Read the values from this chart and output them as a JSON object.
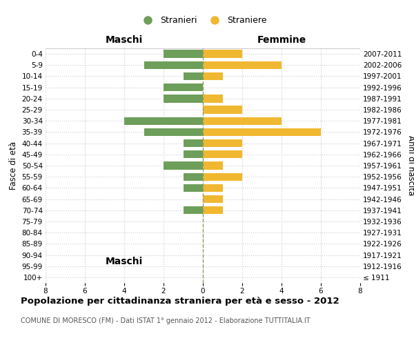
{
  "age_groups": [
    "100+",
    "95-99",
    "90-94",
    "85-89",
    "80-84",
    "75-79",
    "70-74",
    "65-69",
    "60-64",
    "55-59",
    "50-54",
    "45-49",
    "40-44",
    "35-39",
    "30-34",
    "25-29",
    "20-24",
    "15-19",
    "10-14",
    "5-9",
    "0-4"
  ],
  "birth_years": [
    "≤ 1911",
    "1912-1916",
    "1917-1921",
    "1922-1926",
    "1927-1931",
    "1932-1936",
    "1937-1941",
    "1942-1946",
    "1947-1951",
    "1952-1956",
    "1957-1961",
    "1962-1966",
    "1967-1971",
    "1972-1976",
    "1977-1981",
    "1982-1986",
    "1987-1991",
    "1992-1996",
    "1997-2001",
    "2002-2006",
    "2007-2011"
  ],
  "maschi": [
    0,
    0,
    0,
    0,
    0,
    0,
    1,
    0,
    1,
    1,
    2,
    1,
    1,
    3,
    4,
    0,
    2,
    2,
    1,
    3,
    2
  ],
  "femmine": [
    0,
    0,
    0,
    0,
    0,
    0,
    1,
    1,
    1,
    2,
    1,
    2,
    2,
    6,
    4,
    2,
    1,
    0,
    1,
    4,
    2
  ],
  "maschi_color": "#6d9e5a",
  "femmine_color": "#f0b830",
  "title": "Popolazione per cittadinanza straniera per età e sesso - 2012",
  "subtitle": "COMUNE DI MORESCO (FM) - Dati ISTAT 1° gennaio 2012 - Elaborazione TUTTITALIA.IT",
  "xlabel_left": "Maschi",
  "xlabel_right": "Femmine",
  "ylabel_left": "Fasce di età",
  "ylabel_right": "Anni di nascita",
  "legend_maschi": "Stranieri",
  "legend_femmine": "Straniere",
  "xlim": 8,
  "background_color": "#ffffff",
  "grid_color": "#cccccc",
  "bar_height": 0.7,
  "center_line_color": "#999966",
  "center_line_style": "--",
  "title_fontsize": 9.5,
  "subtitle_fontsize": 7.0,
  "tick_fontsize": 7.5,
  "header_fontsize": 10,
  "legend_fontsize": 9
}
